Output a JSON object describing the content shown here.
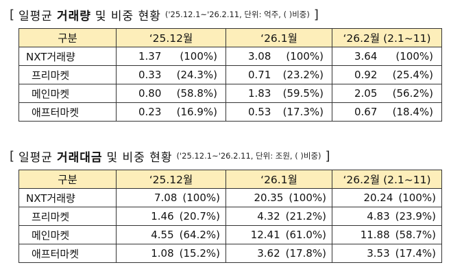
{
  "volume": {
    "title_normal_1": "일평균",
    "title_bold": "거래량",
    "title_normal_2": "및 비중 현황",
    "note": "('25.12.1~'26.2.11, 단위: 억주, ( )비중)",
    "bracket_open": "[",
    "bracket_close": "]",
    "headers": [
      "구분",
      "‘25.12월",
      "‘26.1월",
      "‘26.2월 (2.1~11)"
    ],
    "rows": [
      {
        "label": "NXT거래량",
        "cells": [
          [
            "1.37",
            "(100%)"
          ],
          [
            "3.08",
            "(100%)"
          ],
          [
            "3.64",
            "(100%)"
          ]
        ]
      },
      {
        "label": "프리마켓",
        "cells": [
          [
            "0.33",
            "(24.3%)"
          ],
          [
            "0.71",
            "(23.2%)"
          ],
          [
            "0.92",
            "(25.4%)"
          ]
        ]
      },
      {
        "label": "메인마켓",
        "cells": [
          [
            "0.80",
            "(58.8%)"
          ],
          [
            "1.83",
            "(59.5%)"
          ],
          [
            "2.05",
            "(56.2%)"
          ]
        ]
      },
      {
        "label": "애프터마켓",
        "cells": [
          [
            "0.23",
            "(16.9%)"
          ],
          [
            "0.53",
            "(17.3%)"
          ],
          [
            "0.67",
            "(18.4%)"
          ]
        ]
      }
    ]
  },
  "value": {
    "title_normal_1": "일평균",
    "title_bold": "거래대금",
    "title_normal_2": "및 비중 현황",
    "note": "('25.12.1~'26.2.11, 단위: 조원, ( )비중)",
    "bracket_open": "[",
    "bracket_close": "]",
    "headers": [
      "구분",
      "‘25.12월",
      "‘26.1월",
      "‘26.2월 (2.1~11)"
    ],
    "rows": [
      {
        "label": "NXT거래량",
        "cells": [
          [
            "7.08",
            "(100%)"
          ],
          [
            "20.35",
            "(100%)"
          ],
          [
            "20.24",
            "(100%)"
          ]
        ]
      },
      {
        "label": "프리마켓",
        "cells": [
          [
            "1.46",
            "(20.7%)"
          ],
          [
            "4.32",
            "(21.2%)"
          ],
          [
            "4.83",
            "(23.9%)"
          ]
        ]
      },
      {
        "label": "메인마켓",
        "cells": [
          [
            "4.55",
            "(64.2%)"
          ],
          [
            "12.41",
            "(61.0%)"
          ],
          [
            "11.88",
            "(58.7%)"
          ]
        ]
      },
      {
        "label": "애프터마켓",
        "cells": [
          [
            "1.08",
            "(15.2%)"
          ],
          [
            "3.62",
            "(17.8%)"
          ],
          [
            "3.53",
            "(17.4%)"
          ]
        ]
      }
    ]
  },
  "colors": {
    "header_bg": "#fdeeba",
    "border": "#333333"
  }
}
